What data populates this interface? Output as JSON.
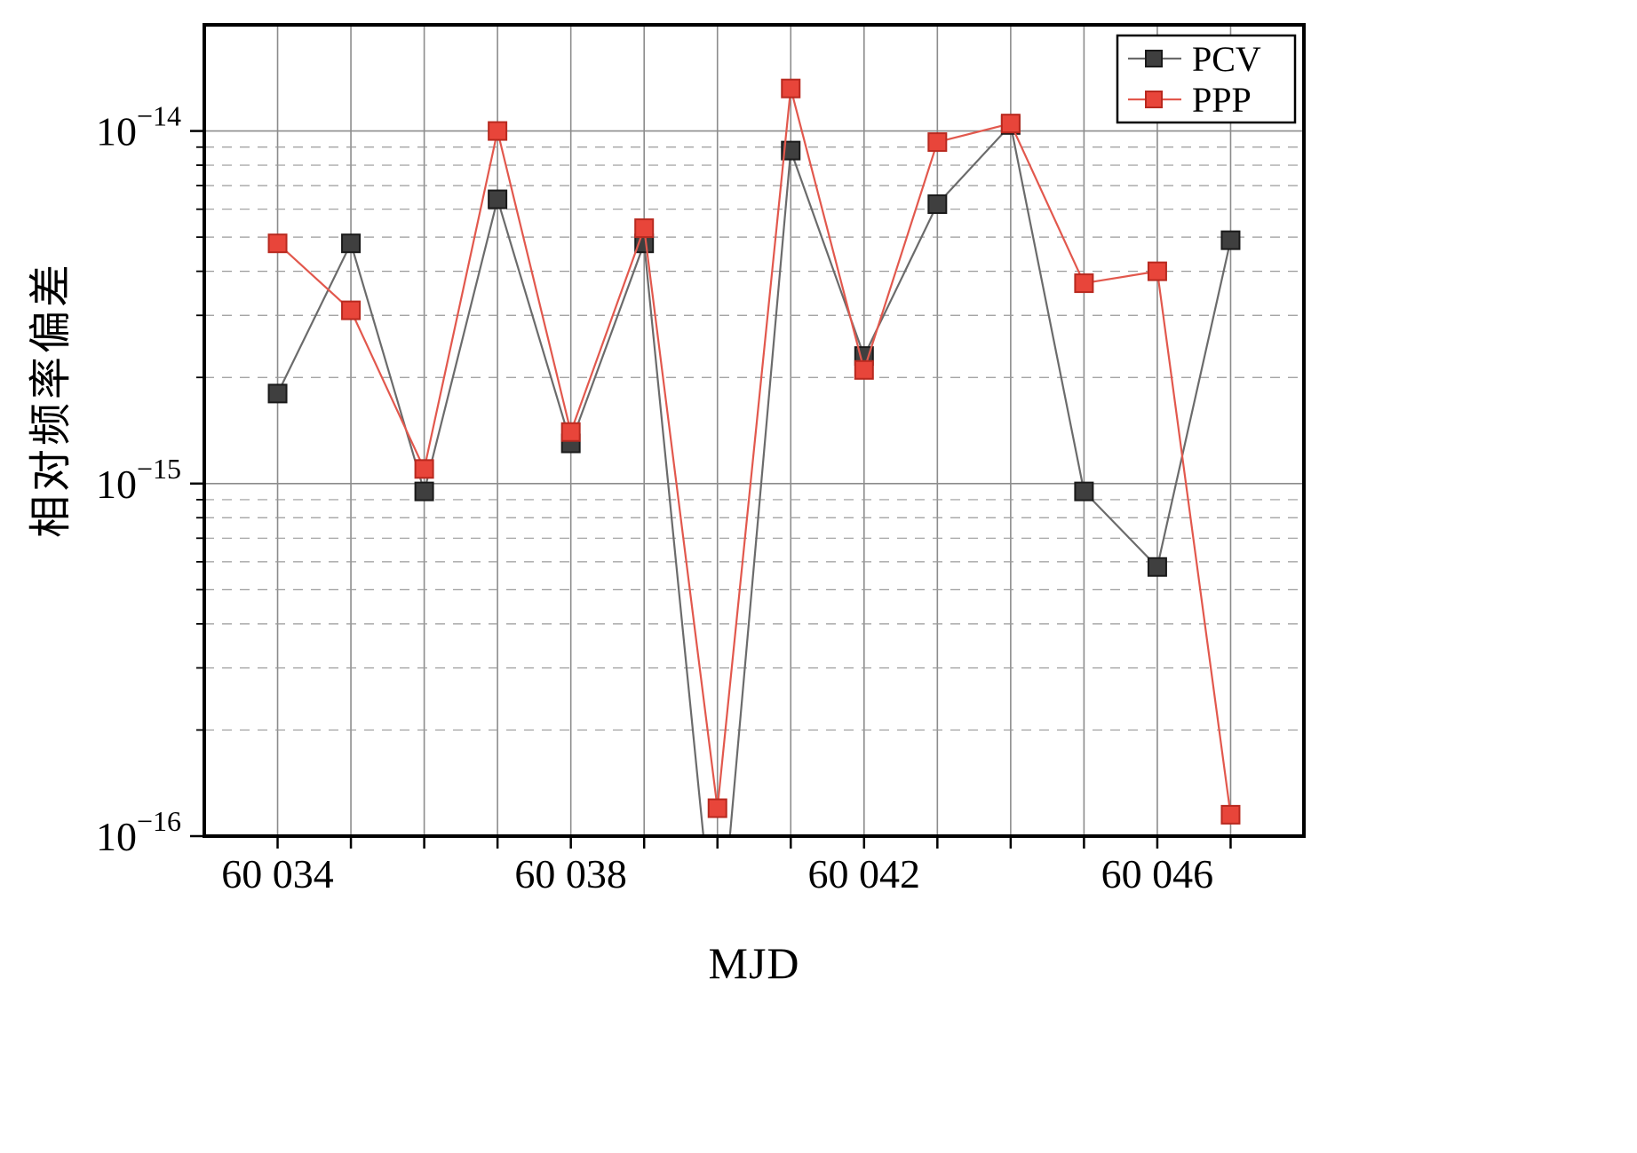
{
  "chart_data": {
    "type": "line",
    "title": "",
    "xlabel": "MJD",
    "ylabel": "相对频率偏差",
    "x": [
      60034,
      60035,
      60036,
      60037,
      60038,
      60039,
      60040,
      60041,
      60042,
      60043,
      60044,
      60045,
      60046,
      60047
    ],
    "series": [
      {
        "name": "PCV",
        "color": "#3f3f3f",
        "line_color": "#6b6b6b",
        "edge_color": "#1a1a1a",
        "values": [
          1.8e-15,
          4.8e-15,
          9.5e-16,
          6.4e-15,
          1.3e-15,
          4.8e-15,
          4e-17,
          8.8e-15,
          2.3e-15,
          6.2e-15,
          1.04e-14,
          9.5e-16,
          5.8e-16,
          4.9e-15
        ]
      },
      {
        "name": "PPP",
        "color": "#e8453a",
        "line_color": "#e2584d",
        "edge_color": "#b8291f",
        "values": [
          4.8e-15,
          3.1e-15,
          1.1e-15,
          1e-14,
          1.4e-15,
          5.3e-15,
          1.2e-16,
          1.32e-14,
          2.1e-15,
          9.3e-15,
          1.05e-14,
          3.7e-15,
          4e-15,
          1.15e-16
        ]
      }
    ],
    "xlim": [
      60033,
      60048
    ],
    "ylim": [
      1e-16,
      2e-14
    ],
    "xticks": {
      "values": [
        60034,
        60038,
        60042,
        60046
      ],
      "labels": [
        "60 034",
        "60 038",
        "60 042",
        "60 046"
      ],
      "minor_step": 1
    },
    "yticks": {
      "exponents": [
        -14,
        -15,
        -16
      ],
      "labels": [
        "−14",
        "−15",
        "−16"
      ],
      "base": "10"
    },
    "grid": {
      "vertical": "solid",
      "y_major": "solid",
      "y_minor": "dashed",
      "grid_color": "#8c8c8c",
      "minor_color": "#9a9a9a"
    },
    "legend": {
      "position": "top-right",
      "entries": [
        "PCV",
        "PPP"
      ]
    }
  }
}
